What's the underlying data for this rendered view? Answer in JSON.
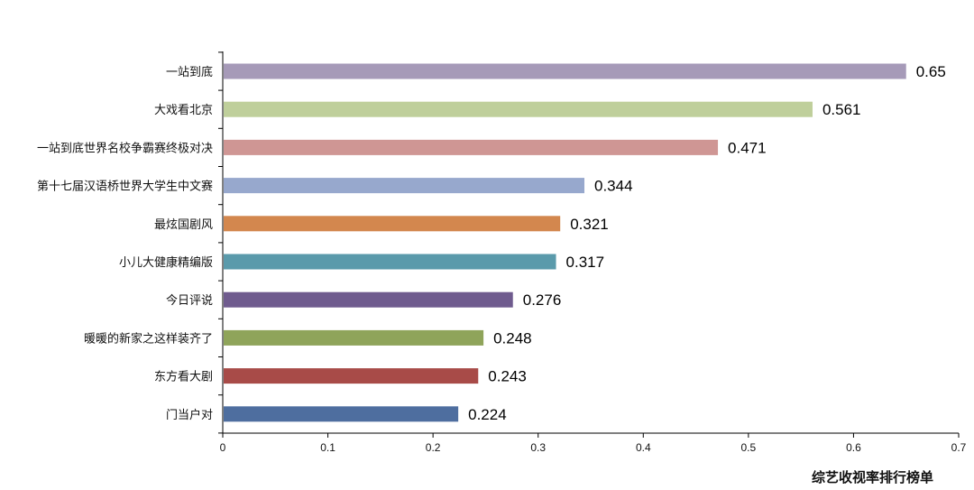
{
  "chart_data": {
    "type": "bar",
    "orientation": "horizontal",
    "caption": "综艺收视率排行榜单",
    "categories": [
      "一站到底",
      "大戏看北京",
      "一站到底世界名校争霸赛终极对决",
      "第十七届汉语桥世界大学生中文赛",
      "最炫国剧风",
      "小儿大健康精编版",
      "今日评说",
      "暖暖的新家之这样装齐了",
      "东方看大剧",
      "门当户对"
    ],
    "values": [
      0.65,
      0.561,
      0.471,
      0.344,
      0.321,
      0.317,
      0.276,
      0.248,
      0.243,
      0.224
    ],
    "value_labels": [
      "0.65",
      "0.561",
      "0.471",
      "0.344",
      "0.321",
      "0.317",
      "0.276",
      "0.248",
      "0.243",
      "0.224"
    ],
    "colors": [
      "#a69ab8",
      "#bfcf9b",
      "#cf9694",
      "#97a8cd",
      "#d3874e",
      "#5a9aab",
      "#6f5b8e",
      "#8fa45a",
      "#a84b48",
      "#4e6e9f"
    ],
    "xlim": [
      0,
      0.7
    ],
    "xticks": [
      "0",
      "0.1",
      "0.2",
      "0.3",
      "0.4",
      "0.5",
      "0.6",
      "0.7"
    ],
    "xtick_values": [
      0,
      0.1,
      0.2,
      0.3,
      0.4,
      0.5,
      0.6,
      0.7
    ],
    "grid": false,
    "legend": "none"
  }
}
